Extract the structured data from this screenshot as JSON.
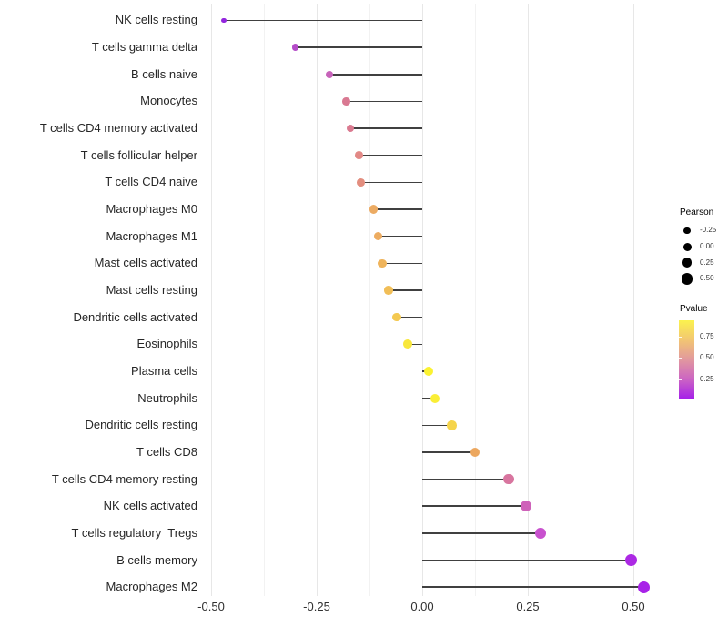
{
  "chart_data": {
    "type": "scatter",
    "variant": "lollipop",
    "title": "",
    "xlabel": "",
    "ylabel": "",
    "x_axis": {
      "ticks": [
        -0.5,
        -0.25,
        0.0,
        0.25,
        0.5
      ],
      "tick_labels": [
        "-0.50",
        "-0.25",
        "0.00",
        "0.25",
        "0.50"
      ],
      "minor_ticks": [
        -0.375,
        -0.125,
        0.125,
        0.375
      ],
      "range": [
        -0.52,
        0.545
      ]
    },
    "points": [
      {
        "label": "NK cells resting",
        "pearson": -0.47,
        "pvalue": 0.03,
        "color": "#9326DE"
      },
      {
        "label": "T cells gamma delta",
        "pearson": -0.3,
        "pvalue": 0.17,
        "color": "#B44CC8"
      },
      {
        "label": "B cells naive",
        "pearson": -0.22,
        "pvalue": 0.27,
        "color": "#C763BA"
      },
      {
        "label": "Monocytes",
        "pearson": -0.18,
        "pvalue": 0.42,
        "color": "#D97992"
      },
      {
        "label": "T cells CD4 memory activated",
        "pearson": -0.17,
        "pvalue": 0.43,
        "color": "#DA7A90"
      },
      {
        "label": "T cells follicular helper",
        "pearson": -0.15,
        "pvalue": 0.5,
        "color": "#E28986"
      },
      {
        "label": "T cells CD4 naive",
        "pearson": -0.145,
        "pvalue": 0.52,
        "color": "#E38E7F"
      },
      {
        "label": "Macrophages M0",
        "pearson": -0.115,
        "pvalue": 0.63,
        "color": "#ECAB63"
      },
      {
        "label": "Macrophages M1",
        "pearson": -0.105,
        "pvalue": 0.63,
        "color": "#EDAC61"
      },
      {
        "label": "Mast cells activated",
        "pearson": -0.095,
        "pvalue": 0.66,
        "color": "#EFB45C"
      },
      {
        "label": "Mast cells resting",
        "pearson": -0.08,
        "pvalue": 0.7,
        "color": "#F1BE57"
      },
      {
        "label": "Dendritic cells activated",
        "pearson": -0.06,
        "pvalue": 0.74,
        "color": "#F4C951"
      },
      {
        "label": "Eosinophils",
        "pearson": -0.035,
        "pvalue": 0.87,
        "color": "#F8E73C"
      },
      {
        "label": "Plasma cells",
        "pearson": 0.015,
        "pvalue": 0.93,
        "color": "#FBF231"
      },
      {
        "label": "Neutrophils",
        "pearson": 0.03,
        "pvalue": 0.9,
        "color": "#FAEE36"
      },
      {
        "label": "Dendritic cells resting",
        "pearson": 0.07,
        "pvalue": 0.78,
        "color": "#F5D44B"
      },
      {
        "label": "T cells CD8",
        "pearson": 0.125,
        "pvalue": 0.61,
        "color": "#ECA75F"
      },
      {
        "label": "T cells CD4 memory resting",
        "pearson": 0.205,
        "pvalue": 0.4,
        "color": "#D8759F"
      },
      {
        "label": "NK cells activated",
        "pearson": 0.245,
        "pvalue": 0.28,
        "color": "#CE62B9"
      },
      {
        "label": "T cells regulatory  Tregs",
        "pearson": 0.28,
        "pvalue": 0.2,
        "color": "#C851CE"
      },
      {
        "label": "B cells memory",
        "pearson": 0.495,
        "pvalue": 0.05,
        "color": "#AC29E4"
      },
      {
        "label": "Macrophages M2",
        "pearson": 0.525,
        "pvalue": 0.03,
        "color": "#A823E8"
      }
    ],
    "legend_size": {
      "title": "Pearson",
      "entries": [
        "-0.25",
        "0.00",
        "0.25",
        "0.50"
      ],
      "dot_color": "#000000"
    },
    "legend_color": {
      "title": "Pvalue",
      "tick_labels": [
        "0.75",
        "0.50",
        "0.25"
      ],
      "gradient": [
        {
          "pos": 0.0,
          "color": "#FBF24E"
        },
        {
          "pos": 0.25,
          "color": "#F2C573"
        },
        {
          "pos": 0.5,
          "color": "#E1979F"
        },
        {
          "pos": 0.75,
          "color": "#CB63C4"
        },
        {
          "pos": 1.0,
          "color": "#A41EEA"
        }
      ]
    },
    "colors": {
      "segment": "#404040",
      "grid_major": "#E7E7E7",
      "grid_minor": "#F2F2F2",
      "axis_text": "#303030",
      "background": "#FFFFFF"
    },
    "legend_position": "right",
    "grid": "vertical-only"
  }
}
